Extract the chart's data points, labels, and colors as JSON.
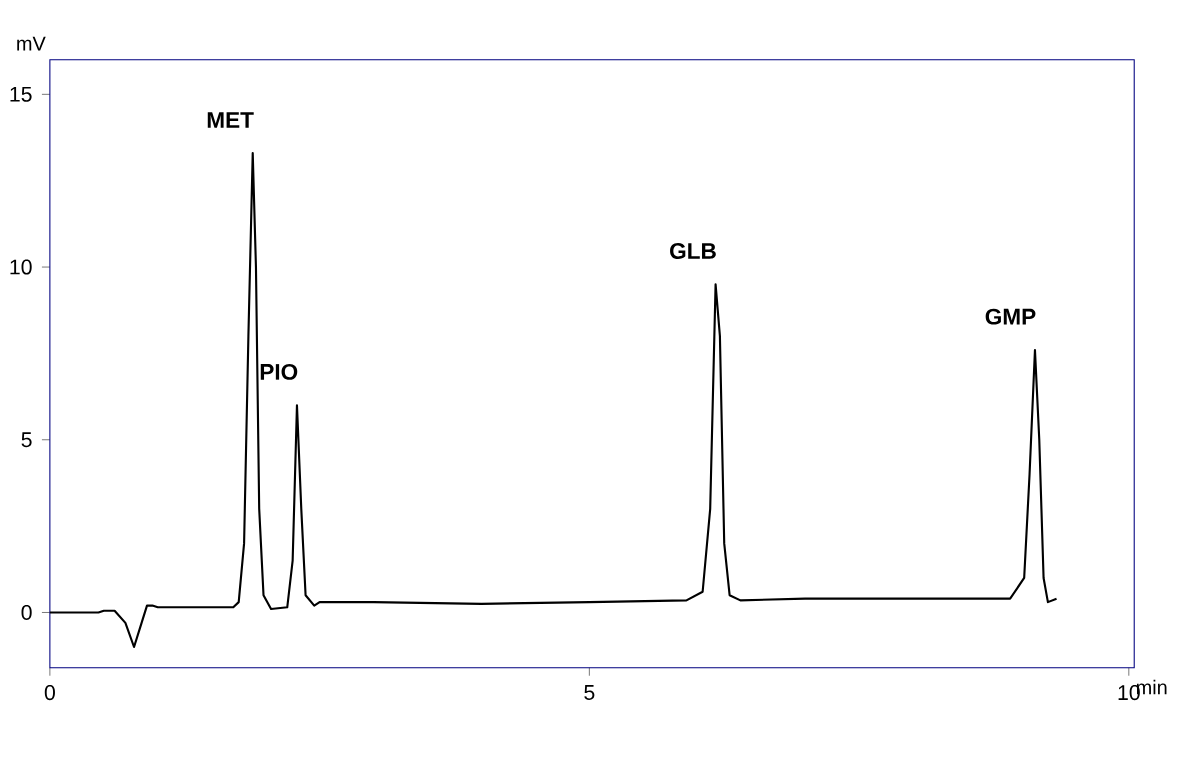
{
  "chart_data": {
    "type": "line",
    "xlabel": "min",
    "ylabel": "mV",
    "xlim": [
      0,
      10.05
    ],
    "ylim": [
      -1.6,
      16
    ],
    "xticks": [
      0,
      5,
      10
    ],
    "yticks": [
      0,
      5,
      10,
      15
    ],
    "grid": false,
    "marker": "none",
    "line_style": "solid",
    "annotations": [
      {
        "text": "MET",
        "x": 1.88,
        "y": 13.3
      },
      {
        "text": "PIO",
        "x": 2.29,
        "y": 6.0
      },
      {
        "text": "GLB",
        "x": 6.17,
        "y": 9.5
      },
      {
        "text": "GMP",
        "x": 9.13,
        "y": 7.6
      }
    ],
    "series": [
      {
        "color": "#000000",
        "x": [
          0,
          0.45,
          0.5,
          0.6,
          0.7,
          0.78,
          0.85,
          0.9,
          0.95,
          1.0,
          1.7,
          1.75,
          1.8,
          1.84,
          1.88,
          1.91,
          1.94,
          1.98,
          2.05,
          2.2,
          2.25,
          2.29,
          2.33,
          2.37,
          2.45,
          2.5,
          3.0,
          4.0,
          5.0,
          5.9,
          6.05,
          6.12,
          6.17,
          6.21,
          6.25,
          6.3,
          6.4,
          7.0,
          8.0,
          8.9,
          9.03,
          9.08,
          9.13,
          9.17,
          9.21,
          9.25,
          9.33
        ],
        "values": [
          0,
          0,
          0.05,
          0.05,
          -0.3,
          -1.0,
          -0.3,
          0.2,
          0.2,
          0.15,
          0.15,
          0.3,
          2,
          8,
          13.3,
          10,
          3,
          0.5,
          0.1,
          0.15,
          1.5,
          6.0,
          3,
          0.5,
          0.2,
          0.3,
          0.3,
          0.25,
          0.3,
          0.35,
          0.6,
          3,
          9.5,
          8,
          2,
          0.5,
          0.35,
          0.4,
          0.4,
          0.4,
          1,
          4,
          7.6,
          5,
          1,
          0.3,
          0.4
        ]
      }
    ]
  }
}
